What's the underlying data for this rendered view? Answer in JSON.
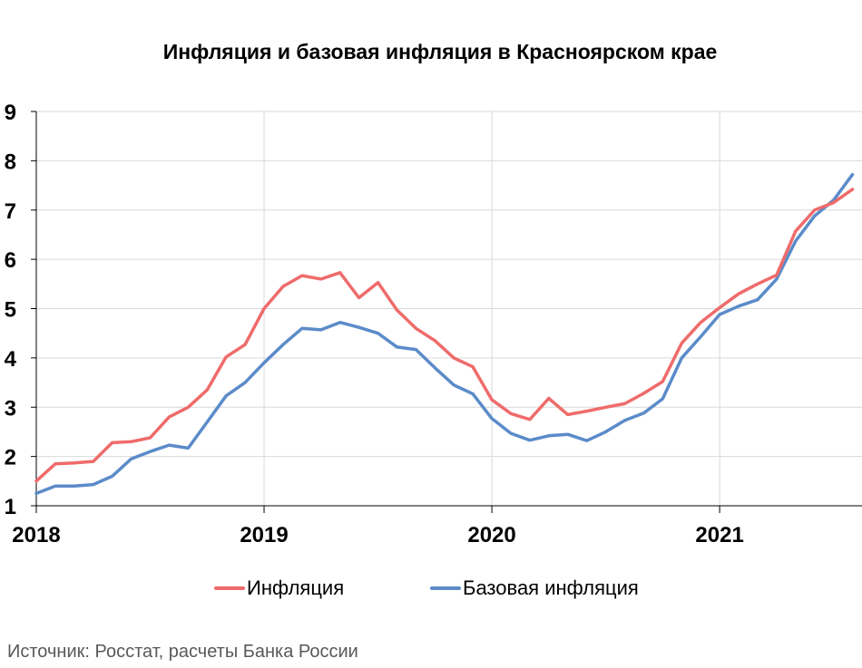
{
  "title": "Инфляция и базовая инфляция в Красноярском крае",
  "source": "Источник: Росстат, расчеты Банка России",
  "colors": {
    "inflation": "#ef6b6b",
    "core": "#5b8bc9",
    "grid": "#d9d9d9",
    "axis": "#000000"
  },
  "legend": [
    {
      "label": "Инфляция"
    },
    {
      "label": "Базовая инфляция"
    }
  ],
  "chart_data": {
    "type": "line",
    "title": "Инфляция и базовая инфляция в Красноярском крае",
    "xlabel": "",
    "ylabel": "",
    "ylim": [
      1,
      9
    ],
    "yticks": [
      1,
      2,
      3,
      4,
      5,
      6,
      7,
      8,
      9
    ],
    "xlim": [
      "2018-01",
      "2021-08"
    ],
    "xticks": [
      "2018",
      "2019",
      "2020",
      "2021"
    ],
    "grid": true,
    "legend_position": "bottom",
    "x": [
      "2018-01",
      "2018-02",
      "2018-03",
      "2018-04",
      "2018-05",
      "2018-06",
      "2018-07",
      "2018-08",
      "2018-09",
      "2018-10",
      "2018-11",
      "2018-12",
      "2019-01",
      "2019-02",
      "2019-03",
      "2019-04",
      "2019-05",
      "2019-06",
      "2019-07",
      "2019-08",
      "2019-09",
      "2019-10",
      "2019-11",
      "2019-12",
      "2020-01",
      "2020-02",
      "2020-03",
      "2020-04",
      "2020-05",
      "2020-06",
      "2020-07",
      "2020-08",
      "2020-09",
      "2020-10",
      "2020-11",
      "2020-12",
      "2021-01",
      "2021-02",
      "2021-03",
      "2021-04",
      "2021-05",
      "2021-06",
      "2021-07",
      "2021-08"
    ],
    "series": [
      {
        "name": "Инфляция",
        "values": [
          1.5,
          1.85,
          1.87,
          1.9,
          2.28,
          2.3,
          2.38,
          2.8,
          3.0,
          3.35,
          4.02,
          4.27,
          5.0,
          5.45,
          5.67,
          5.6,
          5.73,
          5.22,
          5.53,
          4.97,
          4.6,
          4.35,
          4.0,
          3.82,
          3.15,
          2.87,
          2.75,
          3.18,
          2.85,
          2.92,
          3.0,
          3.07,
          3.28,
          3.52,
          4.3,
          4.72,
          5.02,
          5.3,
          5.5,
          5.68,
          6.57,
          7.0,
          7.15,
          7.42
        ]
      },
      {
        "name": "Базовая инфляция",
        "values": [
          1.25,
          1.4,
          1.4,
          1.43,
          1.6,
          1.95,
          2.1,
          2.23,
          2.17,
          2.7,
          3.23,
          3.5,
          3.9,
          4.27,
          4.6,
          4.57,
          4.72,
          4.62,
          4.5,
          4.22,
          4.17,
          3.8,
          3.45,
          3.27,
          2.77,
          2.47,
          2.33,
          2.42,
          2.45,
          2.32,
          2.5,
          2.73,
          2.88,
          3.17,
          4.0,
          4.43,
          4.88,
          5.05,
          5.18,
          5.6,
          6.37,
          6.88,
          7.2,
          7.72
        ]
      }
    ]
  }
}
